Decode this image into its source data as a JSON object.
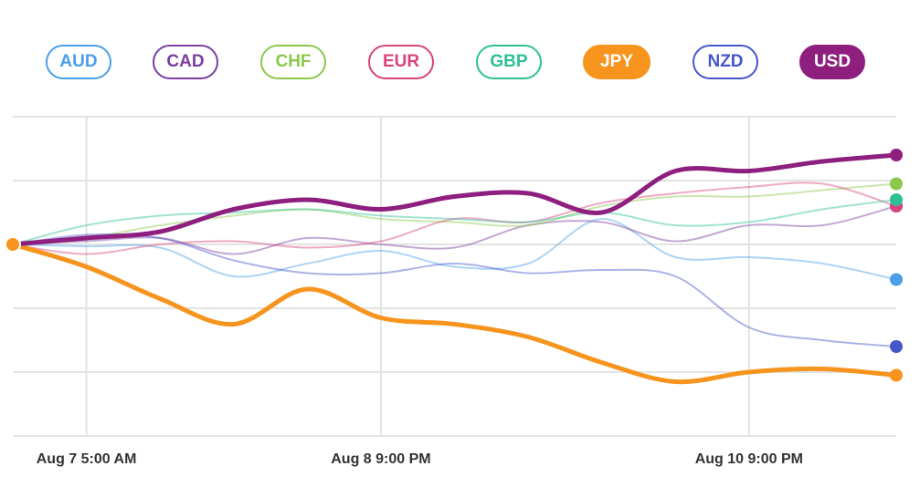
{
  "legend": [
    {
      "code": "AUD",
      "color": "#4a9fe8",
      "active": false
    },
    {
      "code": "CAD",
      "color": "#7b3fa0",
      "active": false
    },
    {
      "code": "CHF",
      "color": "#8cc84b",
      "active": false
    },
    {
      "code": "EUR",
      "color": "#d8437c",
      "active": false
    },
    {
      "code": "GBP",
      "color": "#2ec095",
      "active": false
    },
    {
      "code": "JPY",
      "color": "#f7941d",
      "active": true
    },
    {
      "code": "NZD",
      "color": "#4557c9",
      "active": false
    },
    {
      "code": "USD",
      "color": "#8e1f7f",
      "active": true
    }
  ],
  "chart_data": {
    "type": "line",
    "title": "",
    "xlabel": "",
    "ylabel": "",
    "x": [
      0,
      8,
      16,
      24,
      32,
      40,
      48,
      56,
      64,
      72,
      80,
      88,
      96
    ],
    "x_range": [
      0,
      96
    ],
    "ylim": [
      -3,
      2
    ],
    "x_ticks": [
      {
        "x": 8,
        "label": "Aug 7 5:00 AM"
      },
      {
        "x": 40,
        "label": "Aug 8 9:00 PM"
      },
      {
        "x": 80,
        "label": "Aug 10 9:00 PM"
      }
    ],
    "grid": true,
    "series": [
      {
        "name": "AUD",
        "color": "#4a9fe8",
        "emphasized": false,
        "values": [
          0,
          -0.03,
          -0.05,
          -0.5,
          -0.3,
          -0.1,
          -0.35,
          -0.3,
          0.4,
          -0.2,
          -0.2,
          -0.3,
          -0.55
        ]
      },
      {
        "name": "CAD",
        "color": "#7b3fa0",
        "emphasized": false,
        "values": [
          0,
          0.05,
          0.1,
          -0.15,
          0.1,
          0,
          -0.05,
          0.3,
          0.35,
          0.05,
          0.3,
          0.3,
          0.6
        ]
      },
      {
        "name": "CHF",
        "color": "#8cc84b",
        "emphasized": false,
        "values": [
          0,
          0.1,
          0.3,
          0.45,
          0.55,
          0.4,
          0.35,
          0.3,
          0.6,
          0.75,
          0.75,
          0.85,
          0.95
        ]
      },
      {
        "name": "EUR",
        "color": "#d8437c",
        "emphasized": false,
        "values": [
          0,
          -0.15,
          0.0,
          0.05,
          -0.05,
          0.05,
          0.4,
          0.35,
          0.65,
          0.8,
          0.9,
          0.95,
          0.6
        ]
      },
      {
        "name": "GBP",
        "color": "#2ec095",
        "emphasized": false,
        "values": [
          0,
          0.3,
          0.45,
          0.5,
          0.55,
          0.45,
          0.4,
          0.35,
          0.5,
          0.3,
          0.35,
          0.55,
          0.7
        ]
      },
      {
        "name": "JPY",
        "color": "#f7941d",
        "emphasized": true,
        "values": [
          0,
          -0.35,
          -0.85,
          -1.25,
          -0.7,
          -1.15,
          -1.25,
          -1.45,
          -1.85,
          -2.15,
          -2.0,
          -1.95,
          -2.05
        ]
      },
      {
        "name": "NZD",
        "color": "#4557c9",
        "emphasized": false,
        "values": [
          0,
          0.15,
          0.1,
          -0.25,
          -0.45,
          -0.45,
          -0.3,
          -0.45,
          -0.4,
          -0.5,
          -1.3,
          -1.5,
          -1.6
        ]
      },
      {
        "name": "USD",
        "color": "#8e1f7f",
        "emphasized": true,
        "values": [
          0,
          0.1,
          0.2,
          0.55,
          0.7,
          0.55,
          0.75,
          0.8,
          0.5,
          1.15,
          1.15,
          1.3,
          1.4
        ]
      }
    ]
  }
}
